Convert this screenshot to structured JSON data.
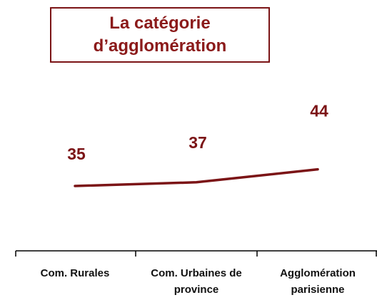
{
  "chart_data": {
    "type": "line",
    "title": "La catégorie d’agglomération",
    "categories": [
      "Com. Rurales",
      "Com. Urbaines de province",
      "Agglomération parisienne"
    ],
    "series": [
      {
        "name": null,
        "color": "#7b1416",
        "values": [
          35,
          37,
          44
        ]
      }
    ],
    "ylim": [
      0,
      100
    ]
  }
}
